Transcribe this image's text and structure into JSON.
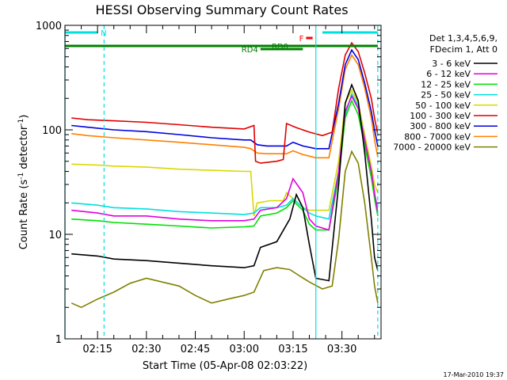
{
  "chart_data": {
    "type": "line",
    "title": "HESSI Observing Summary Count Rates",
    "xlabel": "Start Time (05-Apr-08 02:03:22)",
    "ylabel": "Count Rate (s",
    "ylabel_sup": "-1",
    "ylabel_rest": " detector",
    "ylabel_sup2": "-1",
    "ylabel_close": ")",
    "y_scale": "log",
    "xlim": [
      "02:05",
      "03:42"
    ],
    "ylim": [
      1,
      1000
    ],
    "x_ticks": [
      "02:15",
      "02:30",
      "02:45",
      "03:00",
      "03:15",
      "03:30"
    ],
    "y_ticks": [
      "1",
      "10",
      "100",
      "1000"
    ],
    "grid": false,
    "footer": "17-Mar-2010 19:37",
    "legend": {
      "placement": "right",
      "header": [
        "Det 1,3,4,5,6,9,",
        "FDecim 1, Att 0"
      ],
      "entries": [
        {
          "label": "3 - 6 keV",
          "color": "#000000"
        },
        {
          "label": "6 - 12 keV",
          "color": "#e000e0"
        },
        {
          "label": "12 - 25 keV",
          "color": "#00e000"
        },
        {
          "label": "25 - 50 keV",
          "color": "#00e0e0"
        },
        {
          "label": "50 - 100 keV",
          "color": "#d8d800"
        },
        {
          "label": "100 - 300 keV",
          "color": "#e00000"
        },
        {
          "label": "300 - 800 keV",
          "color": "#0000e0"
        },
        {
          "label": "800 - 7000 keV",
          "color": "#ff8000"
        },
        {
          "label": "7000 - 20000 keV",
          "color": "#808000"
        }
      ]
    },
    "flag_bars": [
      {
        "label": "N",
        "color": "#00e0e0",
        "segments": [
          [
            "02:05",
            "02:15"
          ],
          [
            "03:24",
            "03:41"
          ]
        ]
      },
      {
        "label": "RD0",
        "color": "#008000",
        "segments": [
          [
            "02:05",
            "03:41"
          ]
        ]
      },
      {
        "label": "RD4",
        "color": "#008000",
        "segments": [
          [
            "03:05",
            "03:18"
          ]
        ]
      },
      {
        "label": "F",
        "color": "#ff0000",
        "segments": [
          [
            "03:19",
            "03:21"
          ]
        ]
      }
    ],
    "marker_lines": [
      {
        "time": "02:05",
        "color": "#00e0e0",
        "style": "solid"
      },
      {
        "time": "02:17",
        "color": "#00e0e0",
        "style": "dashed"
      },
      {
        "time": "03:22",
        "color": "#00e0e0",
        "style": "solid"
      },
      {
        "time": "03:41",
        "color": "#00e0e0",
        "style": "dashed"
      }
    ],
    "series": [
      {
        "name": "3 - 6 keV",
        "color": "#000000",
        "points": [
          [
            "02:07",
            6.5
          ],
          [
            "02:15",
            6.2
          ],
          [
            "02:20",
            5.8
          ],
          [
            "02:30",
            5.6
          ],
          [
            "02:40",
            5.3
          ],
          [
            "02:50",
            5.0
          ],
          [
            "03:00",
            4.8
          ],
          [
            "03:03",
            5.0
          ],
          [
            "03:05",
            7.5
          ],
          [
            "03:10",
            8.5
          ],
          [
            "03:14",
            14
          ],
          [
            "03:16",
            24
          ],
          [
            "03:18",
            18
          ],
          [
            "03:20",
            8
          ],
          [
            "03:22",
            3.8
          ],
          [
            "03:26",
            3.6
          ],
          [
            "03:29",
            30
          ],
          [
            "03:31",
            180
          ],
          [
            "03:33",
            270
          ],
          [
            "03:35",
            190
          ],
          [
            "03:37",
            60
          ],
          [
            "03:39",
            14
          ],
          [
            "03:40",
            6
          ],
          [
            "03:41",
            4.5
          ]
        ]
      },
      {
        "name": "6 - 12 keV",
        "color": "#e000e0",
        "points": [
          [
            "02:07",
            17
          ],
          [
            "02:15",
            16
          ],
          [
            "02:20",
            15
          ],
          [
            "02:30",
            15
          ],
          [
            "02:40",
            14
          ],
          [
            "02:50",
            13.5
          ],
          [
            "03:00",
            13.5
          ],
          [
            "03:03",
            14
          ],
          [
            "03:05",
            17
          ],
          [
            "03:10",
            18
          ],
          [
            "03:13",
            22
          ],
          [
            "03:15",
            34
          ],
          [
            "03:18",
            25
          ],
          [
            "03:20",
            14
          ],
          [
            "03:22",
            12
          ],
          [
            "03:26",
            11
          ],
          [
            "03:29",
            40
          ],
          [
            "03:31",
            150
          ],
          [
            "03:33",
            210
          ],
          [
            "03:35",
            160
          ],
          [
            "03:37",
            80
          ],
          [
            "03:39",
            40
          ],
          [
            "03:40",
            25
          ],
          [
            "03:41",
            16
          ]
        ]
      },
      {
        "name": "12 - 25 keV",
        "color": "#00e000",
        "points": [
          [
            "02:07",
            14
          ],
          [
            "02:15",
            13.5
          ],
          [
            "02:20",
            13
          ],
          [
            "02:30",
            12.5
          ],
          [
            "02:40",
            12
          ],
          [
            "02:50",
            11.5
          ],
          [
            "03:00",
            11.8
          ],
          [
            "03:03",
            12
          ],
          [
            "03:05",
            15
          ],
          [
            "03:10",
            16
          ],
          [
            "03:13",
            18
          ],
          [
            "03:15",
            21
          ],
          [
            "03:18",
            17
          ],
          [
            "03:20",
            12.5
          ],
          [
            "03:22",
            11
          ],
          [
            "03:26",
            11
          ],
          [
            "03:29",
            35
          ],
          [
            "03:31",
            130
          ],
          [
            "03:33",
            190
          ],
          [
            "03:35",
            140
          ],
          [
            "03:37",
            70
          ],
          [
            "03:39",
            35
          ],
          [
            "03:40",
            22
          ],
          [
            "03:41",
            15
          ]
        ]
      },
      {
        "name": "25 - 50 keV",
        "color": "#00e0e0",
        "points": [
          [
            "02:07",
            20
          ],
          [
            "02:15",
            19
          ],
          [
            "02:20",
            18
          ],
          [
            "02:30",
            17.5
          ],
          [
            "02:40",
            16.5
          ],
          [
            "02:50",
            16
          ],
          [
            "03:00",
            15.5
          ],
          [
            "03:03",
            16
          ],
          [
            "03:05",
            18
          ],
          [
            "03:10",
            18
          ],
          [
            "03:13",
            19
          ],
          [
            "03:15",
            22
          ],
          [
            "03:18",
            18
          ],
          [
            "03:20",
            16
          ],
          [
            "03:22",
            15
          ],
          [
            "03:26",
            14
          ],
          [
            "03:29",
            40
          ],
          [
            "03:31",
            140
          ],
          [
            "03:33",
            220
          ],
          [
            "03:35",
            170
          ],
          [
            "03:37",
            80
          ],
          [
            "03:39",
            40
          ],
          [
            "03:40",
            24
          ],
          [
            "03:41",
            18
          ]
        ]
      },
      {
        "name": "50 - 100 keV",
        "color": "#d8d800",
        "points": [
          [
            "02:07",
            47
          ],
          [
            "02:15",
            46
          ],
          [
            "02:20",
            45
          ],
          [
            "02:30",
            44
          ],
          [
            "02:40",
            42
          ],
          [
            "02:50",
            41
          ],
          [
            "03:00",
            40
          ],
          [
            "03:02",
            40
          ],
          [
            "03:03",
            15
          ],
          [
            "03:04",
            20
          ],
          [
            "03:08",
            21
          ],
          [
            "03:12",
            21
          ],
          [
            "03:13",
            25
          ],
          [
            "03:15",
            22
          ],
          [
            "03:18",
            18
          ],
          [
            "03:20",
            17
          ],
          [
            "03:22",
            17
          ],
          [
            "03:26",
            17
          ],
          [
            "03:29",
            50
          ],
          [
            "03:31",
            180
          ],
          [
            "03:33",
            240
          ],
          [
            "03:35",
            180
          ],
          [
            "03:37",
            90
          ],
          [
            "03:39",
            45
          ],
          [
            "03:40",
            30
          ],
          [
            "03:41",
            25
          ]
        ]
      },
      {
        "name": "100 - 300 keV",
        "color": "#e00000",
        "points": [
          [
            "02:07",
            130
          ],
          [
            "02:12",
            125
          ],
          [
            "02:20",
            122
          ],
          [
            "02:30",
            118
          ],
          [
            "02:40",
            112
          ],
          [
            "02:50",
            106
          ],
          [
            "03:00",
            102
          ],
          [
            "03:03",
            110
          ],
          [
            "03:03.5",
            50
          ],
          [
            "03:05",
            48
          ],
          [
            "03:10",
            50
          ],
          [
            "03:12",
            52
          ],
          [
            "03:13",
            115
          ],
          [
            "03:16",
            105
          ],
          [
            "03:20",
            95
          ],
          [
            "03:24",
            88
          ],
          [
            "03:27",
            95
          ],
          [
            "03:29",
            250
          ],
          [
            "03:31",
            520
          ],
          [
            "03:33",
            680
          ],
          [
            "03:35",
            560
          ],
          [
            "03:37",
            350
          ],
          [
            "03:39",
            200
          ],
          [
            "03:40",
            130
          ],
          [
            "03:41",
            90
          ]
        ]
      },
      {
        "name": "300 - 800 keV",
        "color": "#0000e0",
        "points": [
          [
            "02:07",
            110
          ],
          [
            "02:12",
            106
          ],
          [
            "02:20",
            100
          ],
          [
            "02:30",
            96
          ],
          [
            "02:40",
            90
          ],
          [
            "02:50",
            84
          ],
          [
            "03:00",
            80
          ],
          [
            "03:02",
            80
          ],
          [
            "03:04",
            72
          ],
          [
            "03:07",
            70
          ],
          [
            "03:10",
            70
          ],
          [
            "03:13",
            70
          ],
          [
            "03:15",
            76
          ],
          [
            "03:18",
            70
          ],
          [
            "03:22",
            66
          ],
          [
            "03:26",
            66
          ],
          [
            "03:29",
            180
          ],
          [
            "03:31",
            420
          ],
          [
            "03:33",
            580
          ],
          [
            "03:35",
            470
          ],
          [
            "03:37",
            280
          ],
          [
            "03:39",
            150
          ],
          [
            "03:40",
            100
          ],
          [
            "03:41",
            70
          ]
        ]
      },
      {
        "name": "800 - 7000 keV",
        "color": "#ff8000",
        "points": [
          [
            "02:07",
            92
          ],
          [
            "02:12",
            88
          ],
          [
            "02:20",
            84
          ],
          [
            "02:30",
            80
          ],
          [
            "02:40",
            76
          ],
          [
            "02:50",
            72
          ],
          [
            "03:00",
            68
          ],
          [
            "03:02",
            66
          ],
          [
            "03:04",
            60
          ],
          [
            "03:07",
            59
          ],
          [
            "03:10",
            59
          ],
          [
            "03:13",
            59
          ],
          [
            "03:15",
            63
          ],
          [
            "03:18",
            58
          ],
          [
            "03:22",
            54
          ],
          [
            "03:26",
            54
          ],
          [
            "03:29",
            160
          ],
          [
            "03:31",
            380
          ],
          [
            "03:33",
            520
          ],
          [
            "03:35",
            420
          ],
          [
            "03:37",
            250
          ],
          [
            "03:39",
            130
          ],
          [
            "03:40",
            80
          ],
          [
            "03:41",
            55
          ]
        ]
      },
      {
        "name": "7000 - 20000 keV",
        "color": "#808000",
        "points": [
          [
            "02:07",
            2.2
          ],
          [
            "02:10",
            2.0
          ],
          [
            "02:15",
            2.4
          ],
          [
            "02:20",
            2.8
          ],
          [
            "02:25",
            3.4
          ],
          [
            "02:30",
            3.8
          ],
          [
            "02:40",
            3.2
          ],
          [
            "02:45",
            2.6
          ],
          [
            "02:50",
            2.2
          ],
          [
            "02:55",
            2.4
          ],
          [
            "03:00",
            2.6
          ],
          [
            "03:03",
            2.8
          ],
          [
            "03:06",
            4.5
          ],
          [
            "03:10",
            4.8
          ],
          [
            "03:14",
            4.6
          ],
          [
            "03:17",
            4.0
          ],
          [
            "03:20",
            3.5
          ],
          [
            "03:24",
            3.0
          ],
          [
            "03:27",
            3.2
          ],
          [
            "03:29",
            9
          ],
          [
            "03:31",
            40
          ],
          [
            "03:33",
            62
          ],
          [
            "03:35",
            48
          ],
          [
            "03:37",
            20
          ],
          [
            "03:39",
            6
          ],
          [
            "03:40",
            3.2
          ],
          [
            "03:41",
            2.2
          ]
        ]
      }
    ]
  }
}
